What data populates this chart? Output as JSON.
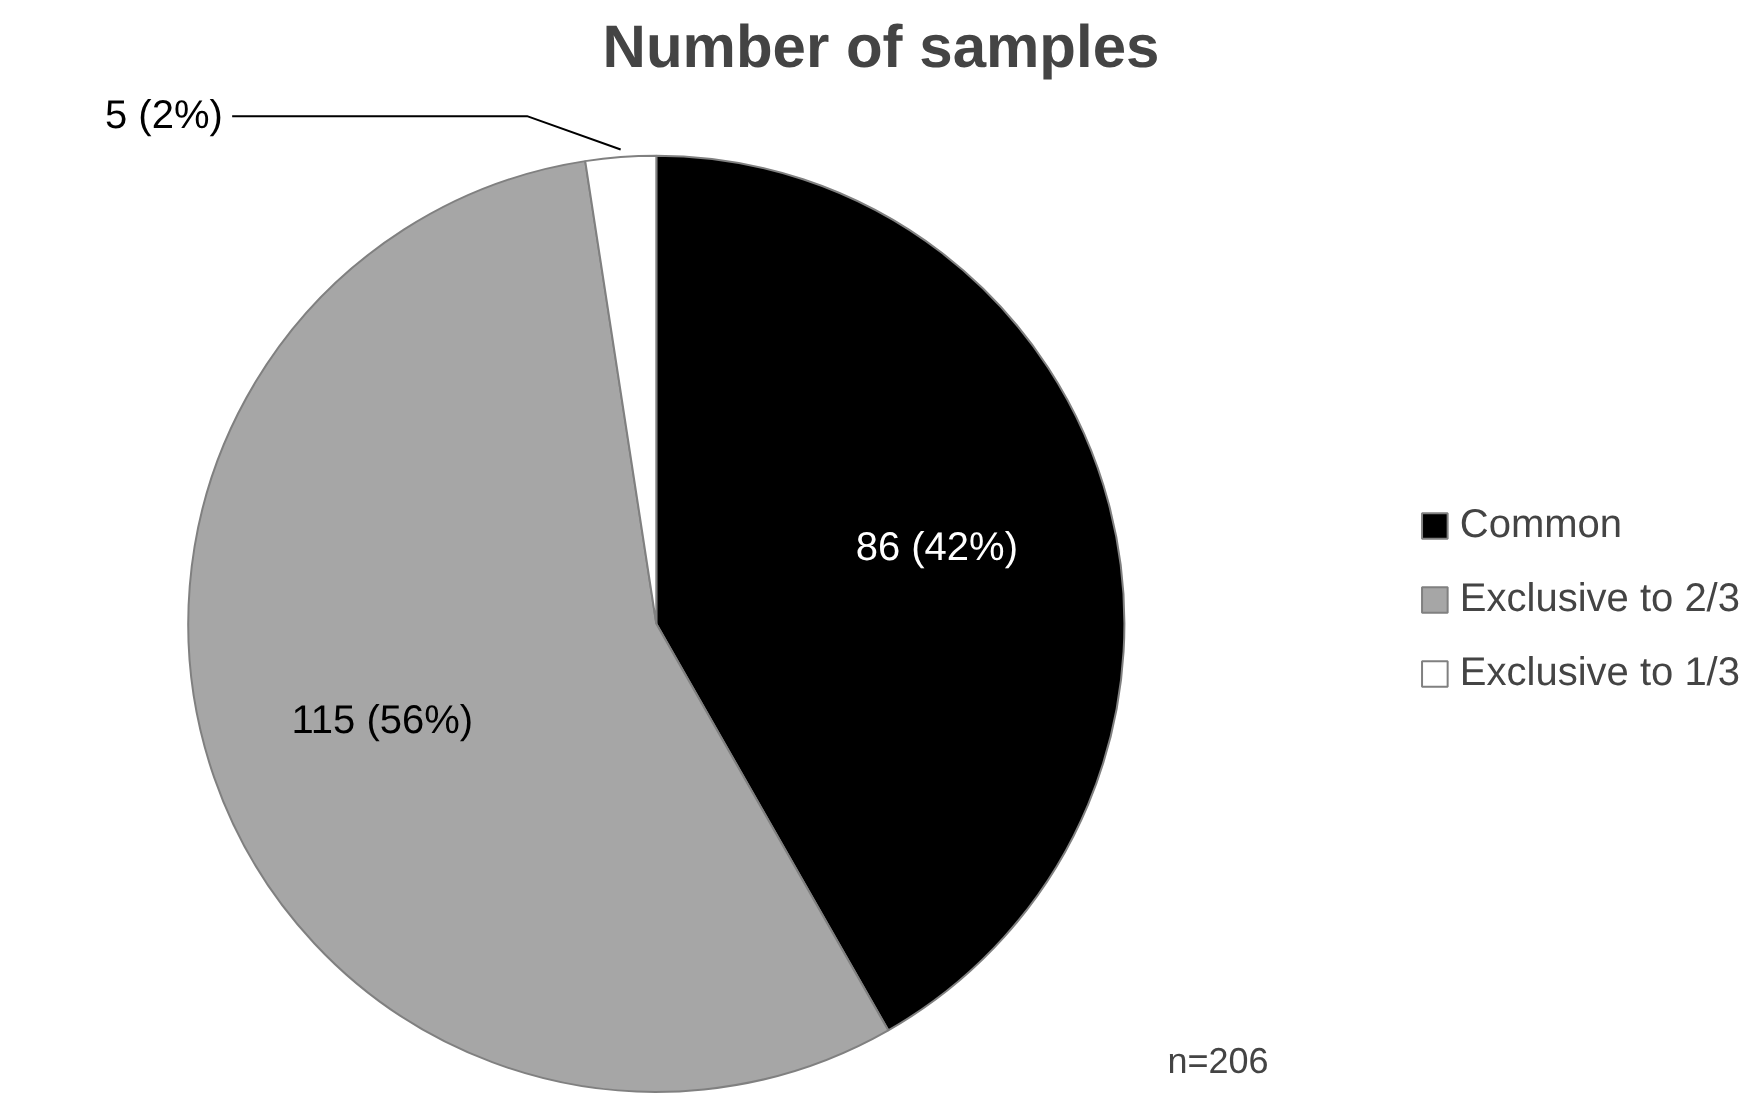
{
  "chart_data": {
    "type": "pie",
    "title": "Number of samples",
    "categories": [
      "Common",
      "Exclusive to 2/3",
      "Exclusive to 1/3"
    ],
    "values": [
      86,
      115,
      5
    ],
    "colors": [
      "#000000",
      "#a6a6a6",
      "#ffffff"
    ],
    "value_labels": [
      "86 (42%)",
      "115 (56%)",
      "5 (2%)"
    ],
    "annotations": [
      "n=206"
    ],
    "legend": "right"
  }
}
